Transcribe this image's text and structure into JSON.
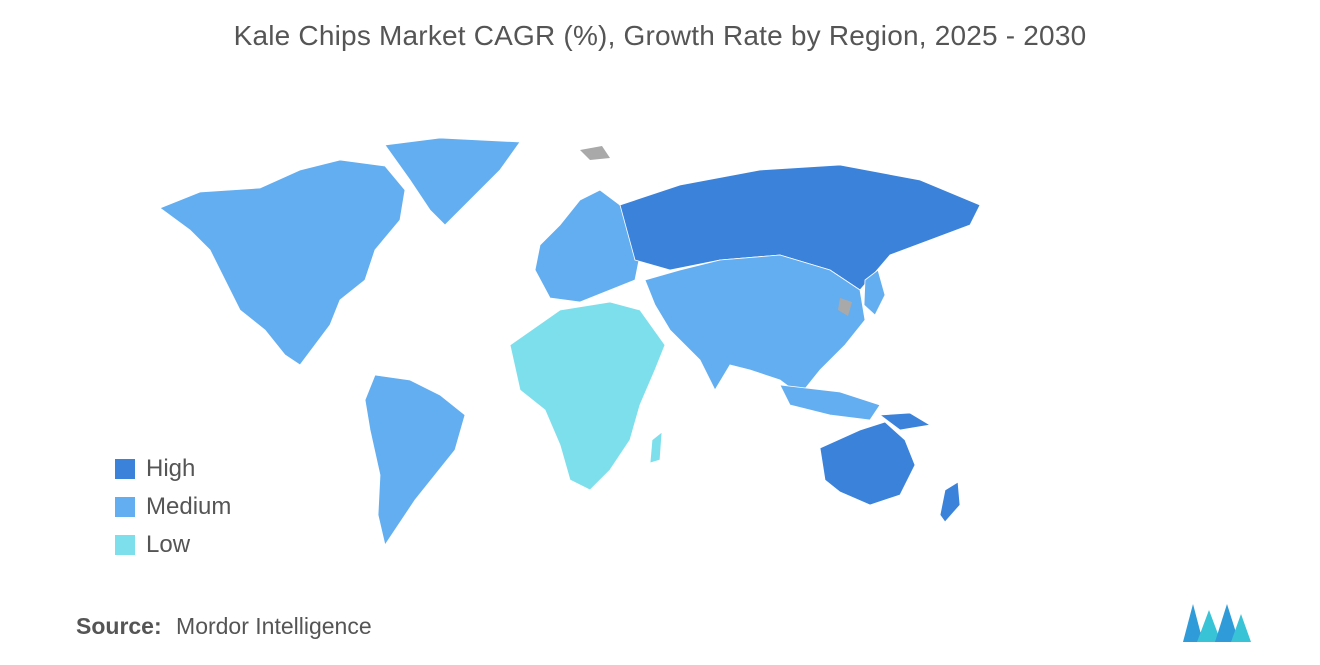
{
  "title": "Kale Chips Market CAGR (%), Growth Rate by Region, 2025 - 2030",
  "legend": [
    {
      "label": "High",
      "color": "#3b82db"
    },
    {
      "label": "Medium",
      "color": "#63aef0"
    },
    {
      "label": "Low",
      "color": "#7edfec"
    }
  ],
  "regions": {
    "north_america": "Medium",
    "south_america": "Medium",
    "europe": "Medium",
    "russia": "High",
    "asia": "Medium",
    "middle_east_africa": "Low",
    "australia_new_zealand": "High"
  },
  "no_data_color": "#a9a9a9",
  "source": {
    "label": "Source:",
    "value": "Mordor Intelligence"
  },
  "logo_icon": "mordor-intelligence-logo-icon"
}
